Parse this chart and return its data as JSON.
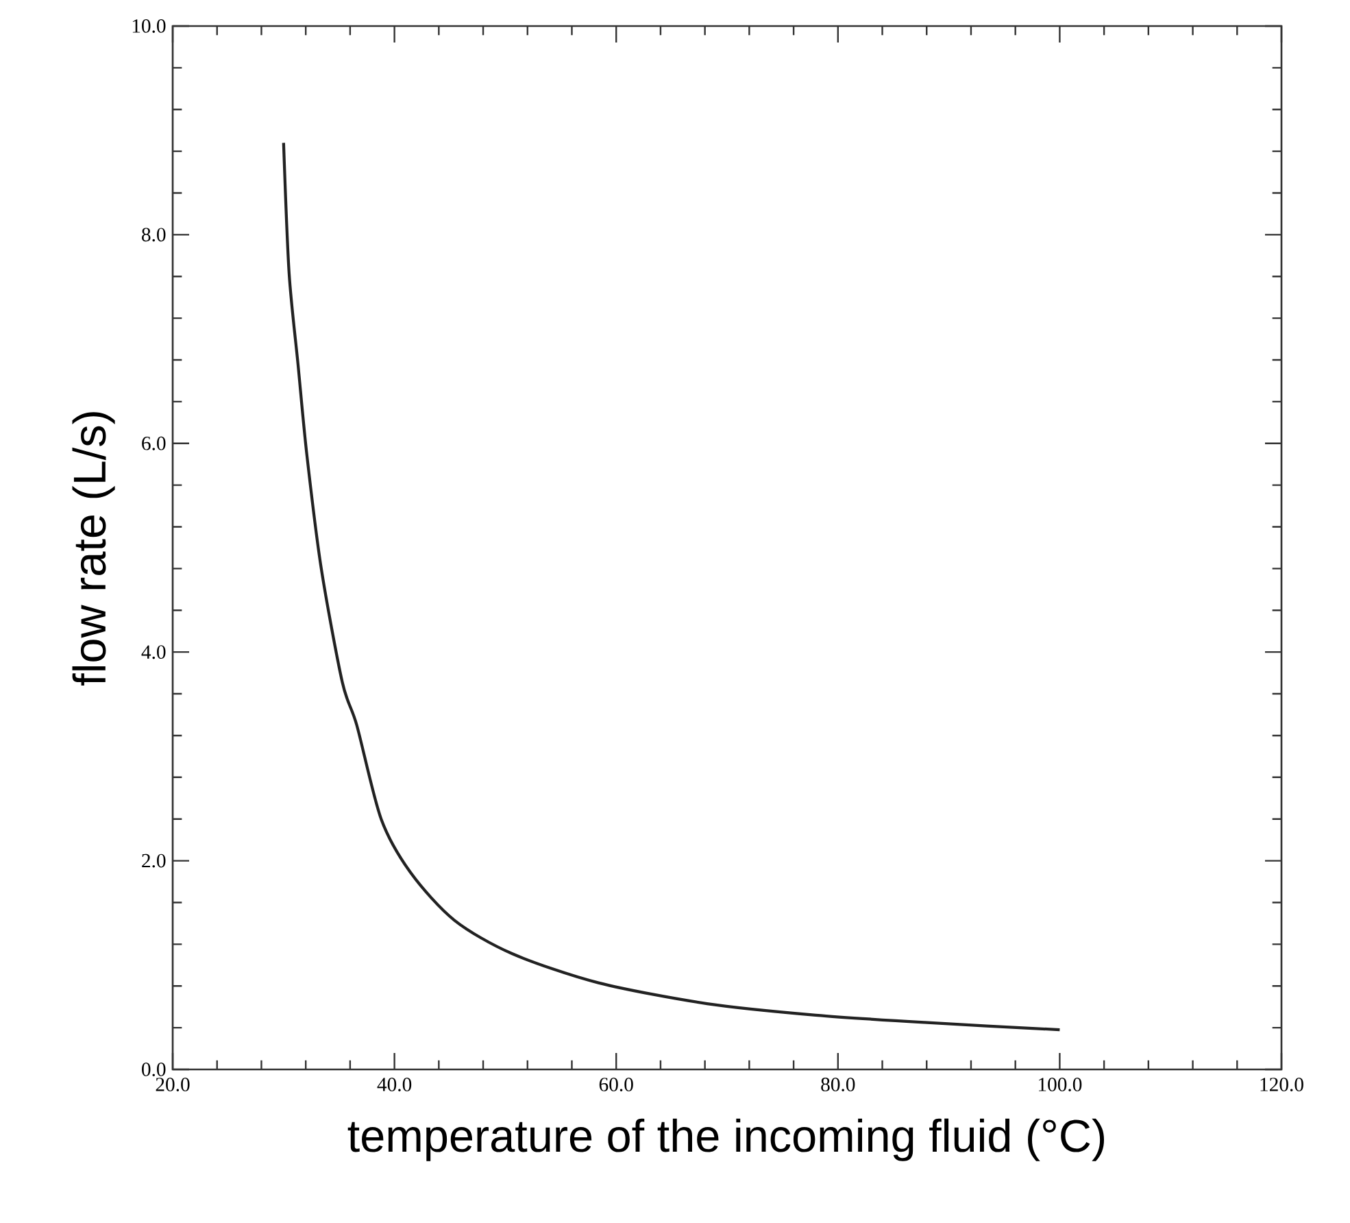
{
  "chart_data": {
    "type": "line",
    "xlabel": "temperature of the incoming fluid (°C)",
    "ylabel": "flow rate (L/s)",
    "xlim": [
      20,
      120
    ],
    "ylim": [
      0,
      10
    ],
    "xticks": [
      {
        "value": 20,
        "label": "20.0"
      },
      {
        "value": 40,
        "label": "40.0"
      },
      {
        "value": 60,
        "label": "60.0"
      },
      {
        "value": 80,
        "label": "80.0"
      },
      {
        "value": 100,
        "label": "100.0"
      },
      {
        "value": 120,
        "label": "120.0"
      }
    ],
    "yticks": [
      {
        "value": 0,
        "label": "0.0"
      },
      {
        "value": 2,
        "label": "2.0"
      },
      {
        "value": 4,
        "label": "4.0"
      },
      {
        "value": 6,
        "label": "6.0"
      },
      {
        "value": 8,
        "label": "8.0"
      },
      {
        "value": 10,
        "label": "10.0"
      }
    ],
    "series": [
      {
        "color": "#222222",
        "x": [
          30,
          30.5,
          31.3,
          32.1,
          33.4,
          35.3,
          36.6,
          38.8,
          41.5,
          45.4,
          50.6,
          58.4,
          68.2,
          78,
          87.8,
          100
        ],
        "values": [
          8.88,
          7.63,
          6.76,
          5.89,
          4.8,
          3.71,
          3.3,
          2.4,
          1.88,
          1.43,
          1.11,
          0.83,
          0.63,
          0.52,
          0.45,
          0.38
        ]
      }
    ]
  }
}
